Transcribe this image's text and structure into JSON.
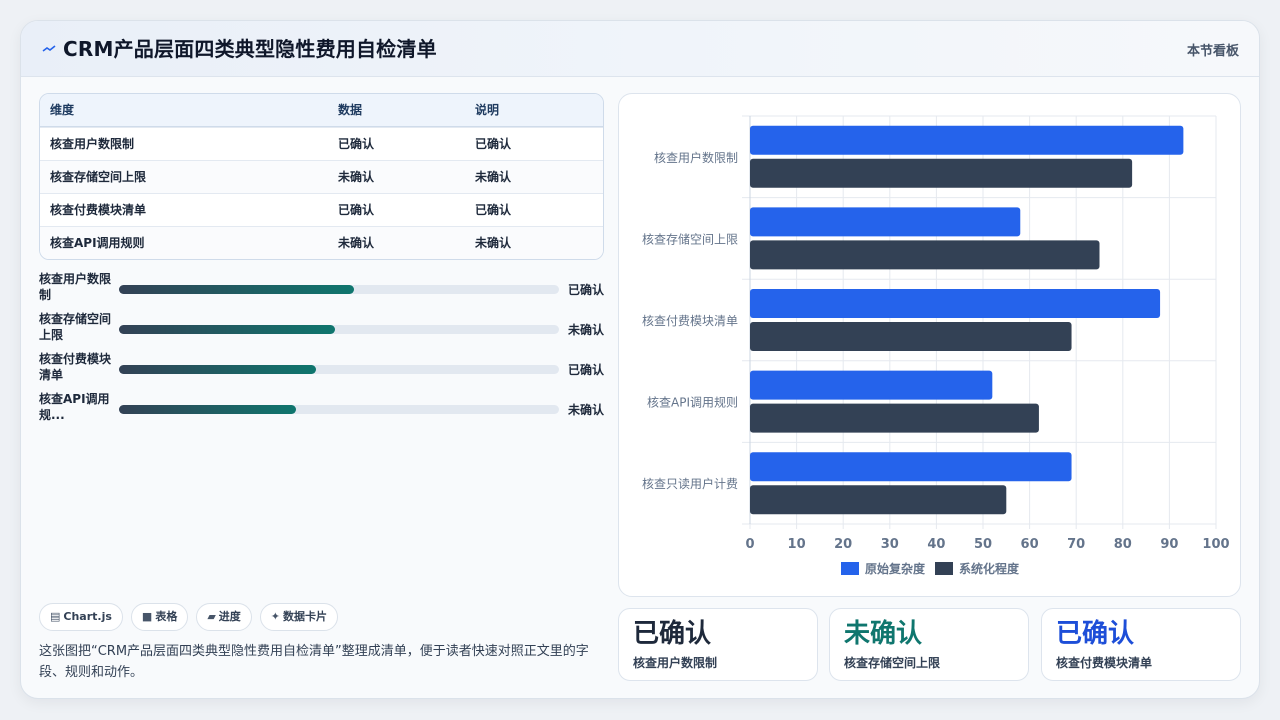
{
  "header": {
    "icon": "sparkline-icon",
    "title": "CRM产品层面四类典型隐性费用自检清单",
    "board_label": "本节看板"
  },
  "table": {
    "columns": [
      "维度",
      "数据",
      "说明"
    ],
    "rows": [
      [
        "核查用户数限制",
        "已确认",
        "已确认"
      ],
      [
        "核查存储空间上限",
        "未确认",
        "未确认"
      ],
      [
        "核查付费模块清单",
        "已确认",
        "已确认"
      ],
      [
        "核查API调用规则",
        "未确认",
        "未确认"
      ]
    ]
  },
  "progress": [
    {
      "label": "核查用户数限制",
      "value": "已确认",
      "fraction": 0.535
    },
    {
      "label": "核查存储空间上限",
      "value": "未确认",
      "fraction": 0.49
    },
    {
      "label": "核查付费模块清单",
      "value": "已确认",
      "fraction": 0.447
    },
    {
      "label": "核查API调用规...",
      "value": "未确认",
      "fraction": 0.402
    }
  ],
  "tags": [
    {
      "icon": "chart-icon",
      "label": "Chart.js"
    },
    {
      "icon": "table-icon",
      "label": "表格"
    },
    {
      "icon": "progress-icon",
      "label": "进度"
    },
    {
      "icon": "sparkle-icon",
      "label": "数据卡片"
    }
  ],
  "description": "这张图把“CRM产品层面四类典型隐性费用自检清单”整理成清单，便于读者快速对照正文里的字段、规则和动作。",
  "stats": [
    {
      "value": "已确认",
      "label": "核查用户数限制",
      "color": "#1e293b"
    },
    {
      "value": "未确认",
      "label": "核查存储空间上限",
      "color": "#0f766e"
    },
    {
      "value": "已确认",
      "label": "核查付费模块清单",
      "color": "#1d4ed8"
    }
  ],
  "chart_data": {
    "type": "bar",
    "orientation": "horizontal",
    "categories": [
      "核查用户数限制",
      "核查存储空间上限",
      "核查付费模块清单",
      "核查API调用规则",
      "核查只读用户计费"
    ],
    "series": [
      {
        "name": "原始复杂度",
        "color": "#2563eb",
        "values": [
          93,
          58,
          88,
          52,
          69
        ]
      },
      {
        "name": "系统化程度",
        "color": "#334155",
        "values": [
          82,
          75,
          69,
          62,
          55
        ]
      }
    ],
    "xlim": [
      0,
      100
    ],
    "xticks": [
      0,
      10,
      20,
      30,
      40,
      50,
      60,
      70,
      80,
      90,
      100
    ],
    "grid": true,
    "legend": "bottom"
  }
}
